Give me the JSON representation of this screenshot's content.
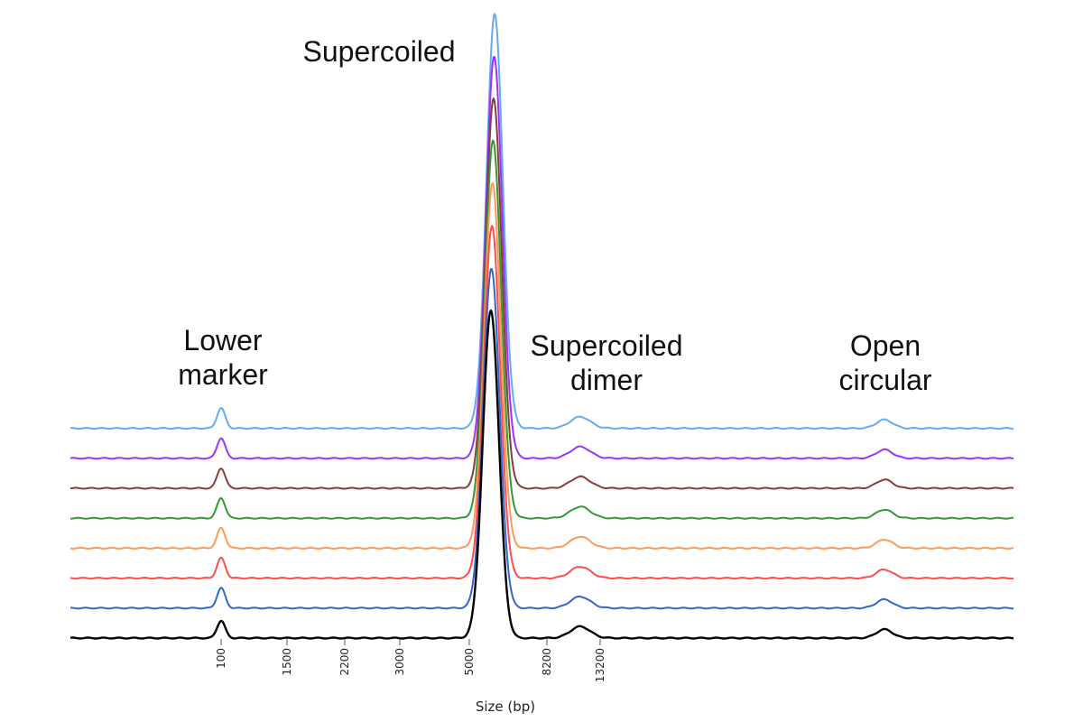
{
  "chart_data": {
    "type": "line",
    "title": "",
    "xlabel": "Size (bp)",
    "ylabel": "",
    "x_ticks": [
      "100",
      "1500",
      "2200",
      "3000",
      "5000",
      "8200",
      "13200"
    ],
    "grid": false,
    "legend": "none",
    "peaks": {
      "lower_marker": {
        "label_lines": [
          "Lower",
          "marker"
        ]
      },
      "supercoiled": {
        "label_lines": [
          "Supercoiled"
        ]
      },
      "supercoiled_dimer": {
        "label_lines": [
          "Supercoiled",
          "dimer"
        ]
      },
      "open_circular": {
        "label_lines": [
          "Open",
          "circular"
        ]
      }
    },
    "series": [
      {
        "color": "#000000",
        "peak_heights": {
          "lower_marker": 0.06,
          "supercoiled": 1.0,
          "supercoiled_dimer": 0.04,
          "open_circular": 0.03
        }
      },
      {
        "color": "#3366cc",
        "peak_heights": {
          "lower_marker": 0.07,
          "supercoiled": 1.0,
          "supercoiled_dimer": 0.04,
          "open_circular": 0.03
        }
      },
      {
        "color": "#ff4c4c",
        "peak_heights": {
          "lower_marker": 0.07,
          "supercoiled": 1.0,
          "supercoiled_dimer": 0.04,
          "open_circular": 0.03
        }
      },
      {
        "color": "#ff9955",
        "peak_heights": {
          "lower_marker": 0.07,
          "supercoiled": 1.0,
          "supercoiled_dimer": 0.04,
          "open_circular": 0.03
        }
      },
      {
        "color": "#339933",
        "peak_heights": {
          "lower_marker": 0.07,
          "supercoiled": 1.0,
          "supercoiled_dimer": 0.04,
          "open_circular": 0.03
        }
      },
      {
        "color": "#8b3a3a",
        "peak_heights": {
          "lower_marker": 0.07,
          "supercoiled": 1.0,
          "supercoiled_dimer": 0.04,
          "open_circular": 0.03
        }
      },
      {
        "color": "#9933ff",
        "peak_heights": {
          "lower_marker": 0.07,
          "supercoiled": 1.0,
          "supercoiled_dimer": 0.04,
          "open_circular": 0.03
        }
      },
      {
        "color": "#66aaee",
        "peak_heights": {
          "lower_marker": 0.07,
          "supercoiled": 1.0,
          "supercoiled_dimer": 0.04,
          "open_circular": 0.03
        }
      }
    ]
  }
}
